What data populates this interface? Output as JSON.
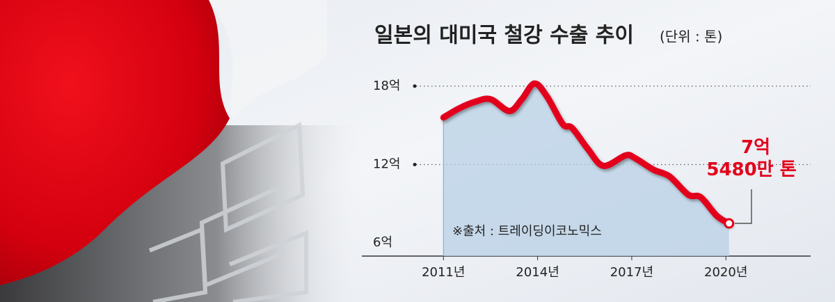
{
  "chart_data": {
    "type": "line",
    "title": "일본의 대미국 철강 수출 추이",
    "subtitle": "(단위 : 톤)",
    "annotation": "7억 5480만 톤",
    "source": "※출처 : 트레이딩이코노믹스",
    "x": [
      2011.0,
      2011.5,
      2012.0,
      2012.5,
      2013.1,
      2013.5,
      2013.9,
      2014.3,
      2014.8,
      2015.1,
      2015.6,
      2016.1,
      2016.8,
      2017.1,
      2017.7,
      2018.2,
      2018.8,
      2019.2,
      2019.7,
      2020.1
    ],
    "series": [
      {
        "name": "대미국 철강 수출",
        "color": "#e3001b",
        "values": [
          15.6,
          16.3,
          16.8,
          17.0,
          16.1,
          17.0,
          18.2,
          17.2,
          15.1,
          14.8,
          13.2,
          11.9,
          12.7,
          12.5,
          11.6,
          11.1,
          9.7,
          9.5,
          8.1,
          7.5
        ]
      }
    ],
    "xlim": [
      2008.4,
      2022.7
    ],
    "xticks": [
      {
        "value": 2011,
        "label": "2011년"
      },
      {
        "value": 2014,
        "label": "2014년"
      },
      {
        "value": 2017,
        "label": "2017년"
      },
      {
        "value": 2020,
        "label": "2020년"
      }
    ],
    "ylim": [
      5,
      19
    ],
    "yticks": [
      {
        "value": 6,
        "label": "6억"
      },
      {
        "value": 12,
        "label": "12억"
      },
      {
        "value": 18,
        "label": "18억"
      }
    ],
    "grid": true,
    "area_color": "#b8d0e6"
  }
}
